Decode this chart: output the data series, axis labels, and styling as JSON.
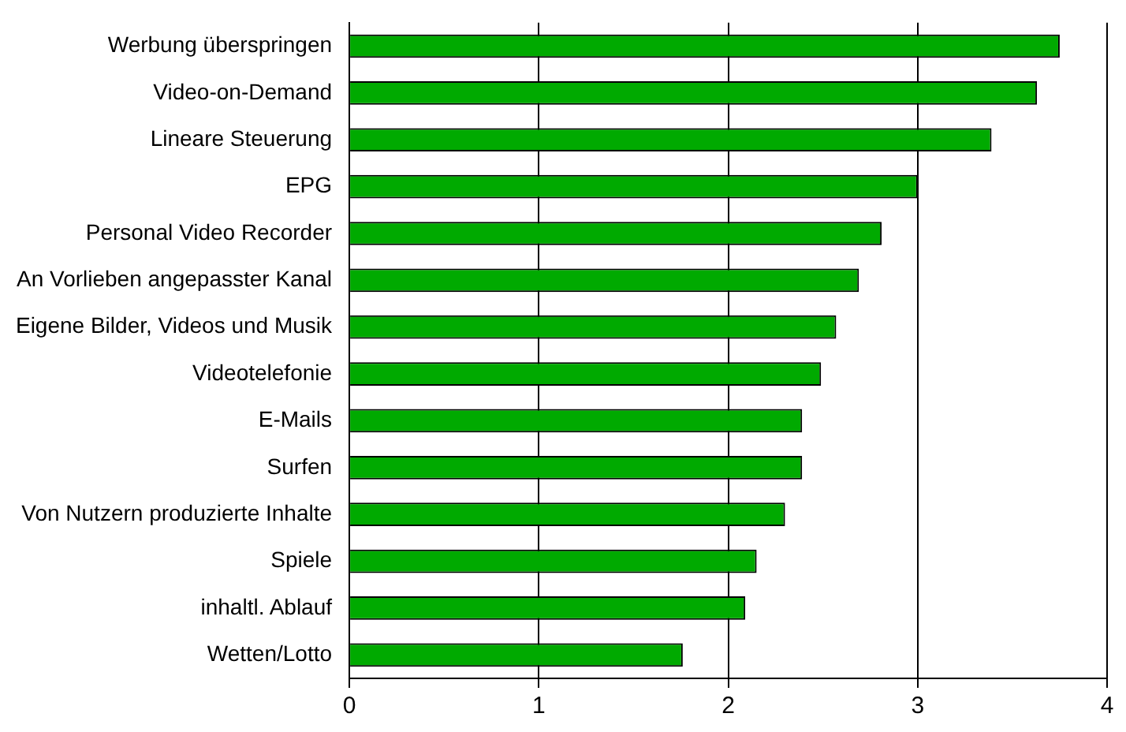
{
  "chart_data": {
    "type": "bar",
    "orientation": "horizontal",
    "categories": [
      "Werbung überspringen",
      "Video-on-Demand",
      "Lineare Steuerung",
      "EPG",
      "Personal Video Recorder",
      "An Vorlieben angepasster Kanal",
      "Eigene Bilder, Videos und Musik",
      "Videotelefonie",
      "E-Mails",
      "Surfen",
      "Von Nutzern produzierte Inhalte",
      "Spiele",
      "inhaltl. Ablauf",
      "Wetten/Lotto"
    ],
    "values": [
      3.75,
      3.63,
      3.39,
      3.0,
      2.81,
      2.69,
      2.57,
      2.49,
      2.39,
      2.39,
      2.3,
      2.15,
      2.09,
      1.76
    ],
    "color": "#00aa00",
    "xlim": [
      0,
      4
    ],
    "xticks": [
      0,
      1,
      2,
      3,
      4
    ],
    "grid": "x",
    "legend": false
  }
}
